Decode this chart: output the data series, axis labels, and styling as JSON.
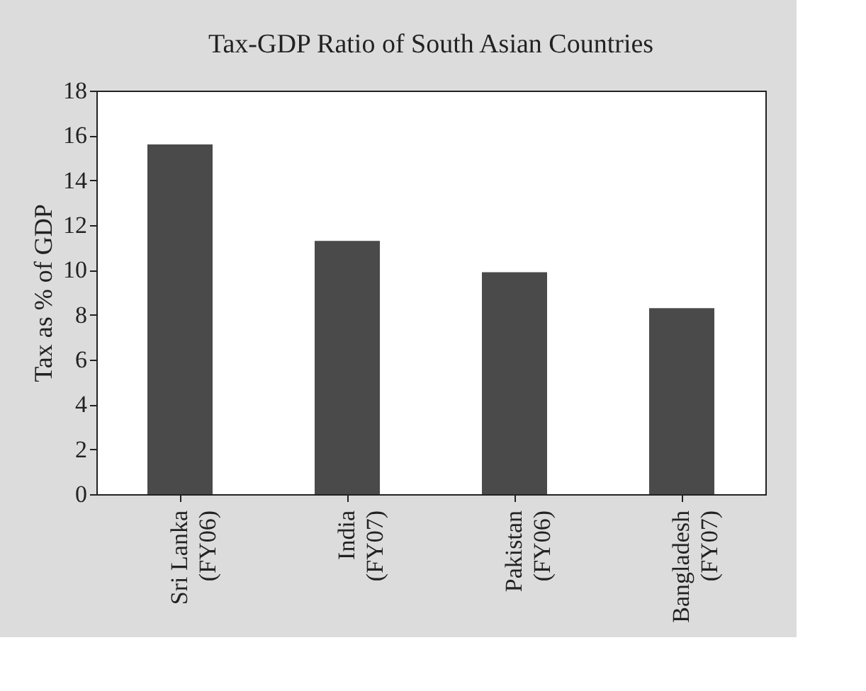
{
  "chart_data": {
    "type": "bar",
    "title": "Tax-GDP Ratio of South Asian Countries",
    "ylabel": "Tax as % of GDP",
    "categories": [
      "Sri Lanka\n(FY06)",
      "India\n(FY07)",
      "Pakistan\n(FY06)",
      "Bangladesh\n(FY07)"
    ],
    "values": [
      15.6,
      11.3,
      9.9,
      8.3
    ],
    "color": "#4a4a4a",
    "ylim": [
      0,
      18
    ],
    "yticks": [
      0,
      2,
      4,
      6,
      8,
      10,
      12,
      14,
      16,
      18
    ]
  }
}
